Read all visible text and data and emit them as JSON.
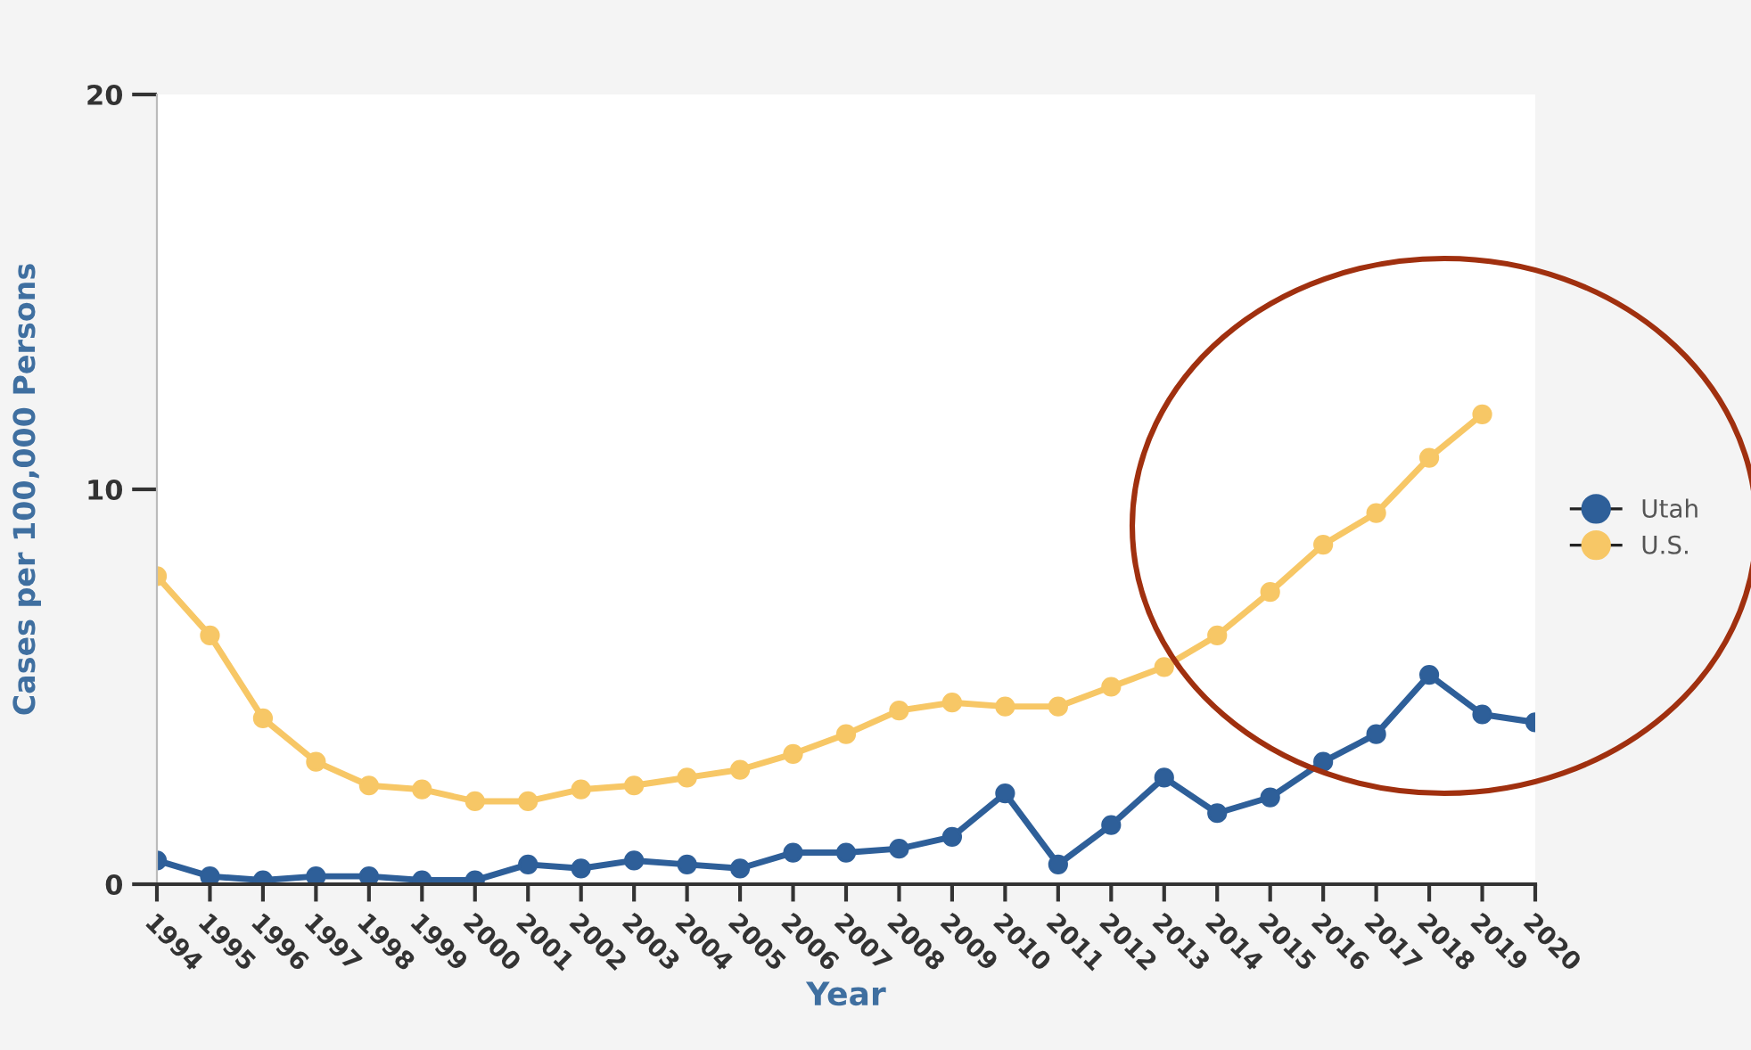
{
  "chart_data": {
    "type": "line",
    "xlabel": "Year",
    "ylabel": "Cases per 100,000 Persons",
    "x": [
      1994,
      1995,
      1996,
      1997,
      1998,
      1999,
      2000,
      2001,
      2002,
      2003,
      2004,
      2005,
      2006,
      2007,
      2008,
      2009,
      2010,
      2011,
      2012,
      2013,
      2014,
      2015,
      2016,
      2017,
      2018,
      2019,
      2020
    ],
    "series": [
      {
        "name": "Utah",
        "color": "#2e5f99",
        "values": [
          0.6,
          0.2,
          0.1,
          0.2,
          0.2,
          0.1,
          0.1,
          0.5,
          0.4,
          0.6,
          0.5,
          0.4,
          0.8,
          0.8,
          0.9,
          1.2,
          2.3,
          0.5,
          1.5,
          2.7,
          1.8,
          2.2,
          3.1,
          3.8,
          5.3,
          4.3,
          4.1
        ]
      },
      {
        "name": "U.S.",
        "color": "#f7c766",
        "values": [
          7.8,
          6.3,
          4.2,
          3.1,
          2.5,
          2.4,
          2.1,
          2.1,
          2.4,
          2.5,
          2.7,
          2.9,
          3.3,
          3.8,
          4.4,
          4.6,
          4.5,
          4.5,
          5.0,
          5.5,
          6.3,
          7.4,
          8.6,
          9.4,
          10.8,
          11.9,
          null
        ]
      }
    ],
    "xlim": [
      1994,
      2020
    ],
    "xticks": [
      1994,
      1995,
      1996,
      1997,
      1998,
      1999,
      2000,
      2001,
      2002,
      2003,
      2004,
      2005,
      2006,
      2007,
      2008,
      2009,
      2010,
      2011,
      2012,
      2013,
      2014,
      2015,
      2016,
      2017,
      2018,
      2019,
      2020
    ],
    "ylim": [
      0,
      20
    ],
    "yticks": [
      0,
      10,
      20
    ],
    "grid": false,
    "legend": "right",
    "marker": "circle",
    "line_style": "solid"
  }
}
